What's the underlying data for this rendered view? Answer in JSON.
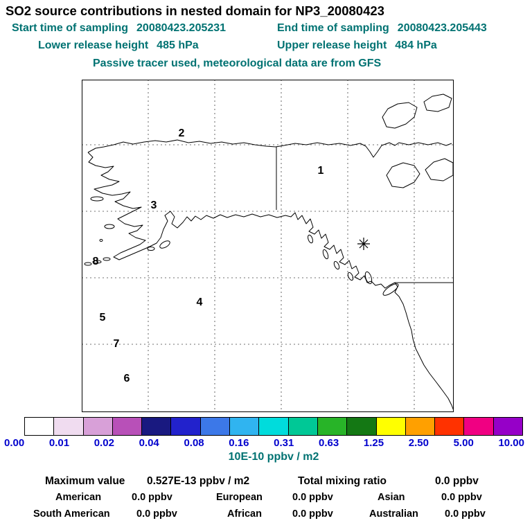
{
  "header": {
    "title": "SO2 source contributions in nested domain for NP3_20080423",
    "start_time": {
      "label": "Start time of sampling",
      "value": "20080423.205231"
    },
    "end_time": {
      "label": "End time of sampling",
      "value": "20080423.205443"
    },
    "lower_release": {
      "label": "Lower release height",
      "value": "485 hPa"
    },
    "upper_release": {
      "label": "Upper release height",
      "value": "484 hPa"
    },
    "note": "Passive tracer used, meteorological data are from GFS"
  },
  "chart_data": {
    "type": "heatmap",
    "title": "SO2 source contributions in nested domain for NP3_20080423",
    "map": {
      "region": "Alaska / Northeast Pacific nested domain",
      "grid": "dashed latitude-longitude grid",
      "marker": {
        "symbol": "asterisk"
      },
      "region_labels": [
        "1",
        "2",
        "3",
        "4",
        "5",
        "6",
        "7",
        "8"
      ]
    },
    "colorbar": {
      "units": "10E-10 ppbv / m2",
      "ticks": [
        "0.00",
        "0.01",
        "0.02",
        "0.04",
        "0.08",
        "0.16",
        "0.31",
        "0.63",
        "1.25",
        "2.50",
        "5.00",
        "10.00"
      ],
      "tick_color": "#0000cd",
      "colors": [
        "#ffffff",
        "#f0dcf0",
        "#d8a0d8",
        "#b850b8",
        "#191980",
        "#2222cc",
        "#3c78e8",
        "#30b4f0",
        "#00dcdc",
        "#00c896",
        "#28b428",
        "#147814",
        "#ffff00",
        "#ffa000",
        "#ff3200",
        "#f00082",
        "#9600c8"
      ]
    },
    "stats": {
      "maximum": {
        "label": "Maximum value",
        "value": "0.527E-13 ppbv / m2"
      },
      "total": {
        "label": "Total mixing ratio",
        "value": "0.0 ppbv"
      },
      "regions": [
        {
          "label": "American",
          "value": "0.0 ppbv"
        },
        {
          "label": "European",
          "value": "0.0 ppbv"
        },
        {
          "label": "Asian",
          "value": "0.0 ppbv"
        },
        {
          "label": "South American",
          "value": "0.0 ppbv"
        },
        {
          "label": "African",
          "value": "0.0 ppbv"
        },
        {
          "label": "Australian",
          "value": "0.0 ppbv"
        }
      ]
    }
  }
}
